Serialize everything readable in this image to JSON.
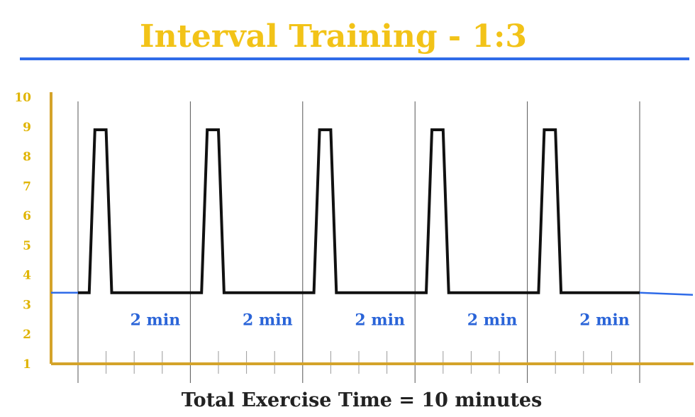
{
  "chart_data": {
    "type": "line",
    "title": "Interval Training - 1:3",
    "footer": "Total Exercise Time =   10 minutes",
    "ylim": [
      1,
      10
    ],
    "y_ticks": [
      "1",
      "2",
      "3",
      "4",
      "5",
      "6",
      "7",
      "8",
      "9",
      "10"
    ],
    "grid": false,
    "segment_labels": [
      "2  min",
      "2  min",
      "2  min",
      "2  min",
      "2  min"
    ],
    "total_minutes": 10,
    "series": [
      {
        "x": [
          0,
          0.2,
          0.3,
          0.5,
          0.6,
          0.75,
          2.0,
          2.2,
          2.3,
          2.5,
          2.6,
          2.75,
          4.0,
          4.2,
          4.3,
          4.5,
          4.6,
          4.75,
          6.0,
          6.2,
          6.3,
          6.5,
          6.6,
          6.75,
          8.0,
          8.2,
          8.3,
          8.5,
          8.6,
          8.75,
          10.0
        ],
        "y": [
          3.4,
          3.4,
          8.9,
          8.9,
          3.4,
          3.4,
          3.4,
          3.4,
          8.9,
          8.9,
          3.4,
          3.4,
          3.4,
          3.4,
          8.9,
          8.9,
          3.4,
          3.4,
          3.4,
          3.4,
          8.9,
          8.9,
          3.4,
          3.4,
          3.4,
          3.4,
          8.9,
          8.9,
          3.4,
          3.4,
          3.4
        ]
      }
    ],
    "colors": {
      "title": "#f2c318",
      "axis": "#d4a32a",
      "rule": "#2f6be8",
      "line": "#111111",
      "baseline": "#2f6be8",
      "divider": "#555555",
      "label": "#2a64d8",
      "footer": "#222222"
    }
  }
}
